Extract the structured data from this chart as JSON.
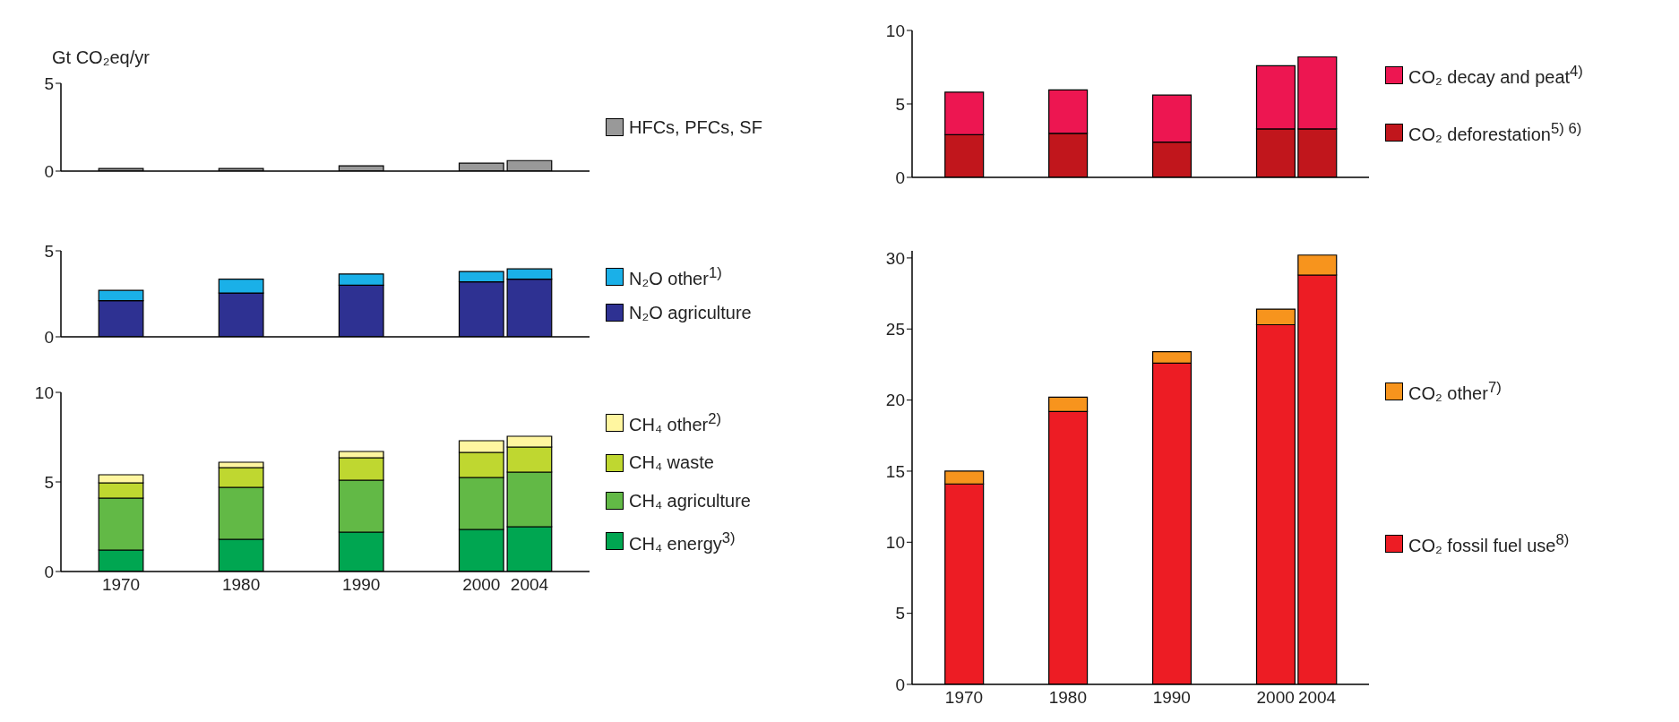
{
  "chart_data": [
    {
      "type": "bar",
      "ylabel": "Gt CO₂eq/yr",
      "x": [
        1970,
        1980,
        1990,
        2000,
        2004
      ],
      "xlim": [
        1965,
        2009
      ],
      "ylim": [
        0,
        5
      ],
      "yticks": [
        0,
        5
      ],
      "tick_labels": "y",
      "legend": "right",
      "stacked": true,
      "series": [
        {
          "name": "HFCs, PFCs, SF",
          "color": "#999999",
          "values": [
            0.15,
            0.15,
            0.3,
            0.45,
            0.6
          ]
        }
      ]
    },
    {
      "type": "bar",
      "x": [
        1970,
        1980,
        1990,
        2000,
        2004
      ],
      "xlim": [
        1965,
        2009
      ],
      "ylim": [
        0,
        5
      ],
      "yticks": [
        0,
        5
      ],
      "tick_labels": "y",
      "legend": "right",
      "stacked": true,
      "series": [
        {
          "name": "N₂O agriculture",
          "color": "#2e3192",
          "values": [
            2.1,
            2.55,
            3.0,
            3.2,
            3.35
          ]
        },
        {
          "name": "N₂O other$^{1)}$",
          "color": "#1ab0e8",
          "values": [
            0.6,
            0.8,
            0.65,
            0.6,
            0.6
          ]
        }
      ]
    },
    {
      "type": "bar",
      "x": [
        1970,
        1980,
        1990,
        2000,
        2004
      ],
      "xlim": [
        1965,
        2009
      ],
      "xticks": [
        1970,
        1980,
        1990,
        2000,
        2004
      ],
      "ylim": [
        0,
        10
      ],
      "yticks": [
        0,
        5,
        10
      ],
      "legend": "right",
      "stacked": true,
      "series": [
        {
          "name": "CH₄ energy$^{3)}$",
          "color": "#00a651",
          "values": [
            1.2,
            1.8,
            2.2,
            2.35,
            2.5
          ]
        },
        {
          "name": "CH₄ agriculture",
          "color": "#62b946",
          "values": [
            2.9,
            2.9,
            2.9,
            2.9,
            3.05
          ]
        },
        {
          "name": "CH₄ waste",
          "color": "#bfd730",
          "values": [
            0.85,
            1.1,
            1.25,
            1.4,
            1.4
          ]
        },
        {
          "name": "CH₄ other$^{2)}$",
          "color": "#fff6a0",
          "values": [
            0.45,
            0.3,
            0.35,
            0.65,
            0.6
          ]
        }
      ]
    },
    {
      "type": "bar",
      "x": [
        1970,
        1980,
        1990,
        2000,
        2004
      ],
      "xlim": [
        1965,
        2009
      ],
      "ylim": [
        0,
        10
      ],
      "yticks": [
        0,
        5,
        10
      ],
      "tick_labels": "y",
      "legend": "right",
      "stacked": true,
      "series": [
        {
          "name": "CO₂ deforestation$^{5) 6)}$",
          "color": "#c1161c",
          "values": [
            2.9,
            3.0,
            2.4,
            3.3,
            3.3
          ]
        },
        {
          "name": "CO₂ decay and peat$^{4)}$",
          "color": "#ed1651",
          "values": [
            2.9,
            2.95,
            3.2,
            4.3,
            4.9
          ]
        }
      ]
    },
    {
      "type": "bar",
      "x": [
        1970,
        1980,
        1990,
        2000,
        2004
      ],
      "xlim": [
        1965,
        2009
      ],
      "xticks": [
        1970,
        1980,
        1990,
        2000,
        2004
      ],
      "ylim": [
        0,
        30.5
      ],
      "yticks": [
        0,
        5,
        10,
        15,
        20,
        25,
        30
      ],
      "legend": "right",
      "stacked": true,
      "series": [
        {
          "name": "CO₂ fossil fuel use$^{8)}$",
          "color": "#ed1c24",
          "values": [
            14.1,
            19.2,
            22.6,
            25.3,
            28.8
          ]
        },
        {
          "name": "CO₂ other$^{7)}$",
          "color": "#f7941d",
          "values": [
            0.9,
            1.0,
            0.8,
            1.1,
            1.4
          ]
        }
      ]
    }
  ]
}
